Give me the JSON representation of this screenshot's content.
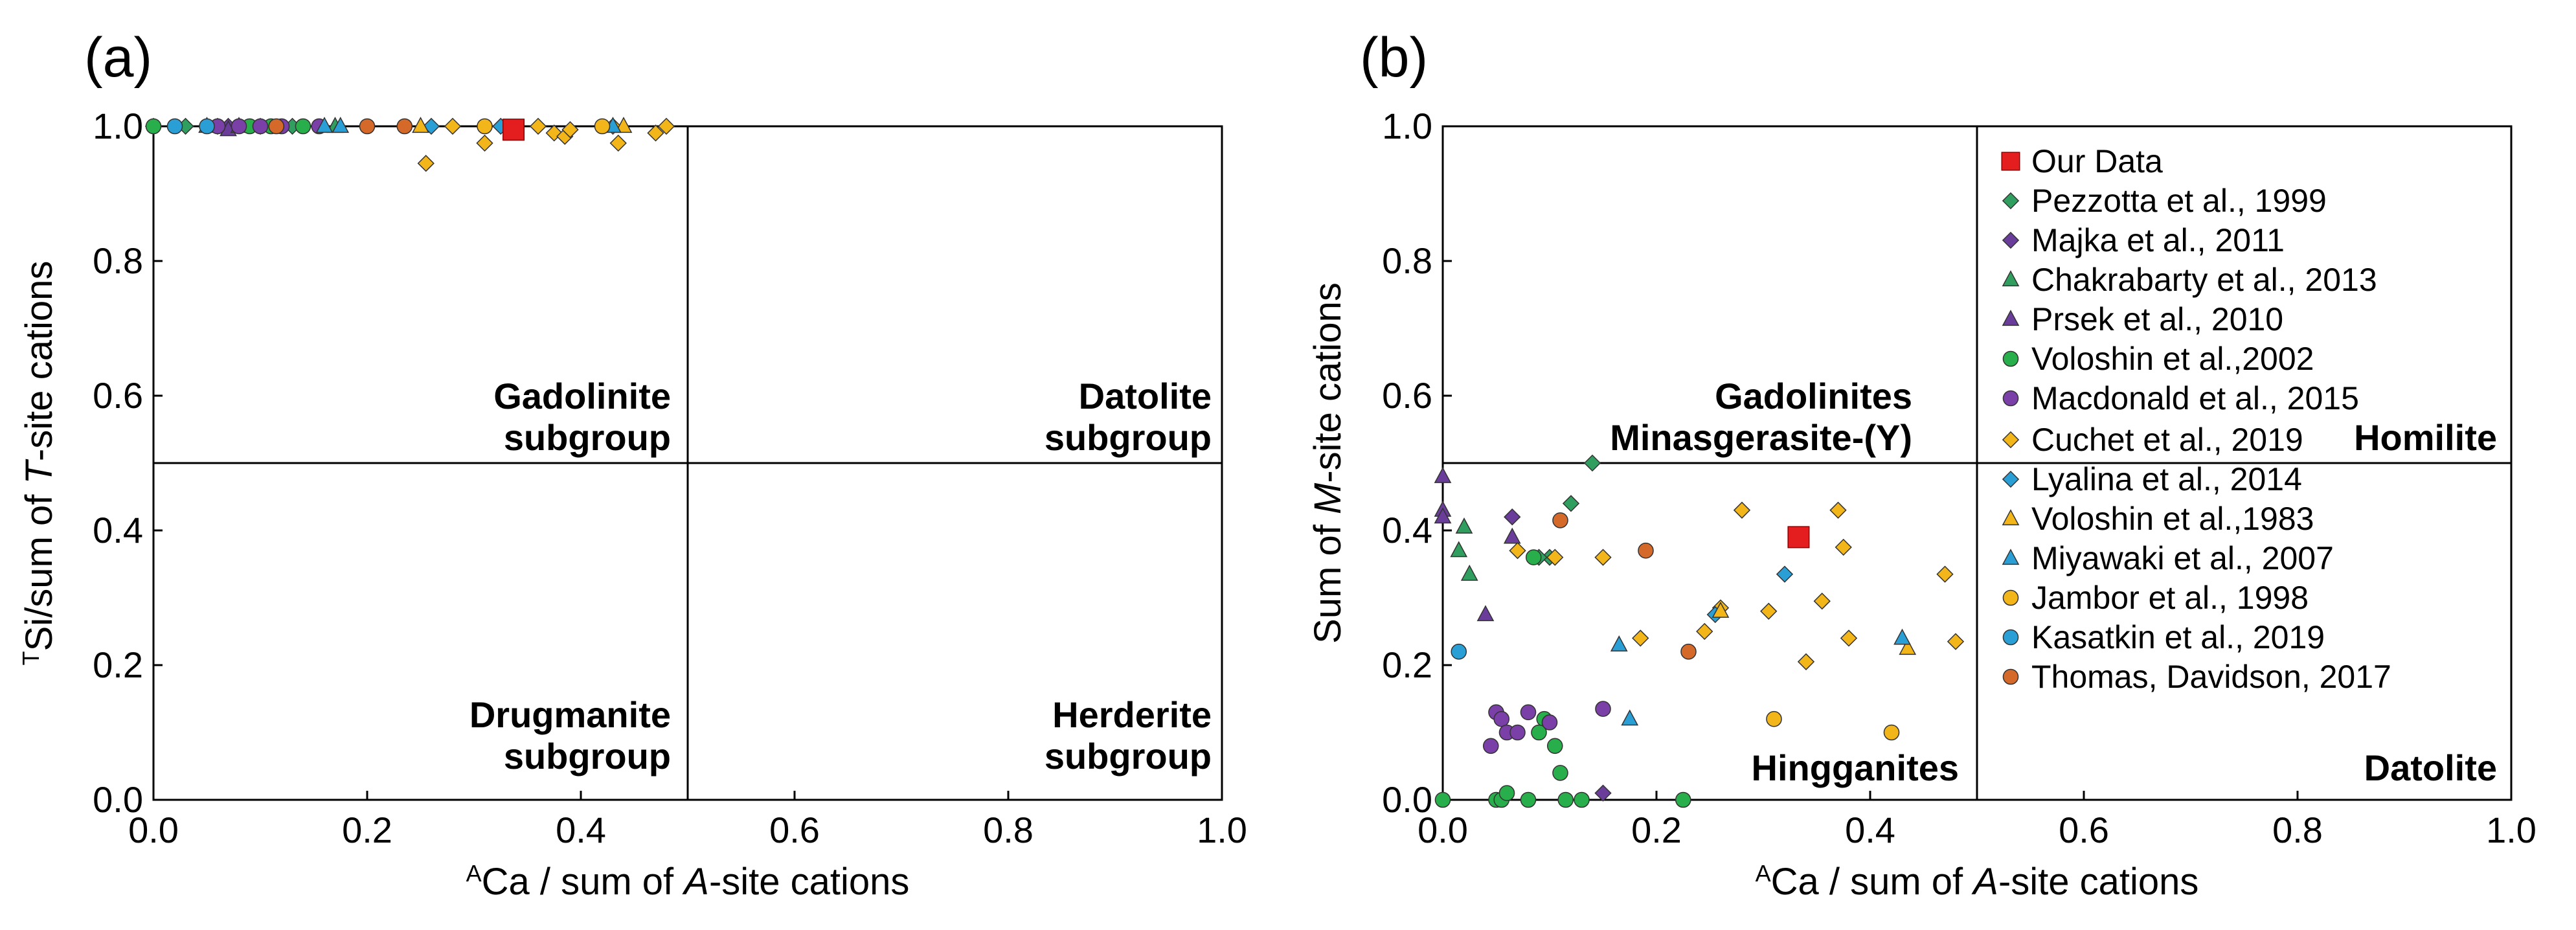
{
  "colors": {
    "our_data": "#e41e1e",
    "pezzotta": "#2f9e5e",
    "majka": "#6a3d9a",
    "chakrabarty": "#2f9e5e",
    "prsek": "#6a3d9a",
    "voloshin2002": "#28ae4a",
    "macdonald": "#7b3fa8",
    "cuchet": "#f2b51a",
    "lyalina": "#2a9fd6",
    "voloshin1983": "#f2b51a",
    "miyawaki": "#2a9fd6",
    "jambor": "#f2b51a",
    "kasatkin": "#2a9fd6",
    "thomas": "#d4692a"
  },
  "chart_data": [
    {
      "panel": "(a)",
      "type": "scatter",
      "xlabel": {
        "sup": "A",
        "pre": "Ca / sum of ",
        "ital": "A",
        "post": "-site cations"
      },
      "ylabel": {
        "sup": "T",
        "pre": "Si/sum of ",
        "ital": "T",
        "post": "-site cations"
      },
      "xlim": [
        0,
        1
      ],
      "ylim": [
        0,
        1
      ],
      "xticks": [
        "0.0",
        "0.2",
        "0.4",
        "0.6",
        "0.8",
        "1.0"
      ],
      "yticks": [
        "0.0",
        "0.2",
        "0.4",
        "0.6",
        "0.8",
        "1.0"
      ],
      "dividers": {
        "x": 0.5,
        "y": 0.5
      },
      "regions": [
        {
          "line1": "Gadolinite",
          "line2": "subgroup",
          "anchor": "top-left-quadrant"
        },
        {
          "line1": "Datolite",
          "line2": "subgroup",
          "anchor": "top-right-quadrant"
        },
        {
          "line1": "Drugmanite",
          "line2": "subgroup",
          "anchor": "bottom-left-quadrant"
        },
        {
          "line1": "Herderite",
          "line2": "subgroup",
          "anchor": "bottom-right-quadrant"
        }
      ],
      "series": [
        {
          "key": "our_data",
          "marker": "square",
          "points": [
            [
              0.337,
              0.995
            ]
          ]
        },
        {
          "key": "pezzotta",
          "marker": "diamond",
          "points": [
            [
              0.0,
              1.0
            ],
            [
              0.03,
              1.0
            ],
            [
              0.06,
              1.0
            ],
            [
              0.13,
              1.0
            ]
          ]
        },
        {
          "key": "majka",
          "marker": "diamond",
          "points": [
            [
              0.07,
              1.0
            ],
            [
              0.1,
              1.0
            ]
          ]
        },
        {
          "key": "chakrabarty",
          "marker": "triangle",
          "points": [
            [
              0.05,
              1.0
            ],
            [
              0.17,
              1.0
            ]
          ]
        },
        {
          "key": "prsek",
          "marker": "triangle",
          "points": [
            [
              0.07,
              0.995
            ],
            [
              0.08,
              1.0
            ]
          ]
        },
        {
          "key": "voloshin2002",
          "marker": "circle",
          "points": [
            [
              0.0,
              1.0
            ],
            [
              0.09,
              1.0
            ],
            [
              0.11,
              1.0
            ],
            [
              0.14,
              1.0
            ]
          ]
        },
        {
          "key": "macdonald",
          "marker": "circle",
          "points": [
            [
              0.06,
              1.0
            ],
            [
              0.08,
              1.0
            ],
            [
              0.1,
              1.0
            ],
            [
              0.12,
              1.0
            ],
            [
              0.155,
              1.0
            ]
          ]
        },
        {
          "key": "cuchet",
          "marker": "diamond",
          "points": [
            [
              0.255,
              0.945
            ],
            [
              0.28,
              1.0
            ],
            [
              0.31,
              0.975
            ],
            [
              0.36,
              1.0
            ],
            [
              0.375,
              0.99
            ],
            [
              0.385,
              0.985
            ],
            [
              0.39,
              0.995
            ],
            [
              0.43,
              1.0
            ],
            [
              0.435,
              0.975
            ],
            [
              0.47,
              0.99
            ],
            [
              0.48,
              1.0
            ]
          ]
        },
        {
          "key": "lyalina",
          "marker": "diamond",
          "points": [
            [
              0.26,
              1.0
            ],
            [
              0.325,
              1.0
            ]
          ]
        },
        {
          "key": "voloshin1983",
          "marker": "triangle",
          "points": [
            [
              0.25,
              1.0
            ],
            [
              0.44,
              1.0
            ]
          ]
        },
        {
          "key": "miyawaki",
          "marker": "triangle",
          "points": [
            [
              0.16,
              1.0
            ],
            [
              0.175,
              1.0
            ],
            [
              0.43,
              1.0
            ]
          ]
        },
        {
          "key": "jambor",
          "marker": "circle",
          "points": [
            [
              0.31,
              1.0
            ],
            [
              0.42,
              1.0
            ]
          ]
        },
        {
          "key": "kasatkin",
          "marker": "circle",
          "points": [
            [
              0.02,
              1.0
            ],
            [
              0.05,
              1.0
            ]
          ]
        },
        {
          "key": "thomas",
          "marker": "circle",
          "points": [
            [
              0.115,
              1.0
            ],
            [
              0.2,
              1.0
            ],
            [
              0.235,
              1.0
            ]
          ]
        }
      ]
    },
    {
      "panel": "(b)",
      "type": "scatter",
      "xlabel": {
        "sup": "A",
        "pre": "Ca / sum of ",
        "ital": "A",
        "post": "-site cations"
      },
      "ylabel": {
        "sup": "",
        "pre": "Sum of ",
        "ital": "M",
        "post": "-site cations"
      },
      "xlim": [
        0,
        1
      ],
      "ylim": [
        0,
        1
      ],
      "xticks": [
        "0.0",
        "0.2",
        "0.4",
        "0.6",
        "0.8",
        "1.0"
      ],
      "yticks": [
        "0.0",
        "0.2",
        "0.4",
        "0.6",
        "0.8",
        "1.0"
      ],
      "dividers": {
        "x": 0.5,
        "y": 0.5
      },
      "regions": [
        {
          "line1": "Gadolinites",
          "line2": "Minasgerasite-(Y)",
          "anchor": "top-left-quadrant"
        },
        {
          "line1": "Homilite",
          "line2": "",
          "anchor": "top-right-quadrant"
        },
        {
          "line1": "Hingganites",
          "line2": "",
          "anchor": "bottom-left-quadrant"
        },
        {
          "line1": "Datolite",
          "line2": "",
          "anchor": "bottom-right-quadrant"
        }
      ],
      "legend": [
        {
          "key": "our_data",
          "marker": "square",
          "label": "Our Data"
        },
        {
          "key": "pezzotta",
          "marker": "diamond",
          "label": "Pezzotta et al., 1999"
        },
        {
          "key": "majka",
          "marker": "diamond",
          "label": "Majka et al., 2011"
        },
        {
          "key": "chakrabarty",
          "marker": "triangle",
          "label": "Chakrabarty et al., 2013"
        },
        {
          "key": "prsek",
          "marker": "triangle",
          "label": "Prsek et al., 2010"
        },
        {
          "key": "voloshin2002",
          "marker": "circle",
          "label": "Voloshin et al.,2002"
        },
        {
          "key": "macdonald",
          "marker": "circle",
          "label": "Macdonald et al., 2015"
        },
        {
          "key": "cuchet",
          "marker": "diamond",
          "label": "Cuchet et al., 2019"
        },
        {
          "key": "lyalina",
          "marker": "diamond",
          "label": "Lyalina et al., 2014"
        },
        {
          "key": "voloshin1983",
          "marker": "triangle",
          "label": "Voloshin et al.,1983"
        },
        {
          "key": "miyawaki",
          "marker": "triangle",
          "label": "Miyawaki et al., 2007"
        },
        {
          "key": "jambor",
          "marker": "circle",
          "label": "Jambor et al., 1998"
        },
        {
          "key": "kasatkin",
          "marker": "circle",
          "label": "Kasatkin et al., 2019"
        },
        {
          "key": "thomas",
          "marker": "circle",
          "label": "Thomas, Davidson, 2017"
        }
      ],
      "series": [
        {
          "key": "our_data",
          "marker": "square",
          "points": [
            [
              0.333,
              0.39
            ]
          ]
        },
        {
          "key": "pezzotta",
          "marker": "diamond",
          "points": [
            [
              0.14,
              0.5
            ],
            [
              0.12,
              0.44
            ],
            [
              0.1,
              0.36
            ],
            [
              0.09,
              0.36
            ]
          ]
        },
        {
          "key": "majka",
          "marker": "diamond",
          "points": [
            [
              0.065,
              0.42
            ],
            [
              0.15,
              0.01
            ]
          ]
        },
        {
          "key": "chakrabarty",
          "marker": "triangle",
          "points": [
            [
              0.02,
              0.405
            ],
            [
              0.025,
              0.335
            ],
            [
              0.015,
              0.37
            ]
          ]
        },
        {
          "key": "prsek",
          "marker": "triangle",
          "points": [
            [
              0.0,
              0.48
            ],
            [
              0.0,
              0.43
            ],
            [
              0.0,
              0.42
            ],
            [
              0.04,
              0.275
            ],
            [
              0.065,
              0.39
            ]
          ]
        },
        {
          "key": "voloshin2002",
          "marker": "circle",
          "points": [
            [
              0.0,
              0.0
            ],
            [
              0.05,
              0.0
            ],
            [
              0.055,
              0.0
            ],
            [
              0.06,
              0.01
            ],
            [
              0.08,
              0.0
            ],
            [
              0.085,
              0.36
            ],
            [
              0.095,
              0.12
            ],
            [
              0.105,
              0.08
            ],
            [
              0.11,
              0.04
            ],
            [
              0.115,
              0.0
            ],
            [
              0.13,
              0.0
            ],
            [
              0.225,
              0.0
            ],
            [
              0.09,
              0.1
            ]
          ]
        },
        {
          "key": "macdonald",
          "marker": "circle",
          "points": [
            [
              0.045,
              0.08
            ],
            [
              0.05,
              0.13
            ],
            [
              0.055,
              0.12
            ],
            [
              0.06,
              0.1
            ],
            [
              0.07,
              0.1
            ],
            [
              0.08,
              0.13
            ],
            [
              0.1,
              0.115
            ],
            [
              0.15,
              0.135
            ]
          ]
        },
        {
          "key": "cuchet",
          "marker": "diamond",
          "points": [
            [
              0.07,
              0.37
            ],
            [
              0.105,
              0.36
            ],
            [
              0.15,
              0.36
            ],
            [
              0.185,
              0.24
            ],
            [
              0.245,
              0.25
            ],
            [
              0.26,
              0.285
            ],
            [
              0.28,
              0.43
            ],
            [
              0.305,
              0.28
            ],
            [
              0.34,
              0.205
            ],
            [
              0.355,
              0.295
            ],
            [
              0.38,
              0.24
            ],
            [
              0.37,
              0.43
            ],
            [
              0.375,
              0.375
            ],
            [
              0.47,
              0.335
            ],
            [
              0.48,
              0.235
            ]
          ]
        },
        {
          "key": "lyalina",
          "marker": "diamond",
          "points": [
            [
              0.255,
              0.275
            ],
            [
              0.32,
              0.335
            ]
          ]
        },
        {
          "key": "voloshin1983",
          "marker": "triangle",
          "points": [
            [
              0.26,
              0.28
            ],
            [
              0.435,
              0.225
            ]
          ]
        },
        {
          "key": "miyawaki",
          "marker": "triangle",
          "points": [
            [
              0.165,
              0.23
            ],
            [
              0.175,
              0.12
            ],
            [
              0.43,
              0.24
            ]
          ]
        },
        {
          "key": "jambor",
          "marker": "circle",
          "points": [
            [
              0.31,
              0.12
            ],
            [
              0.42,
              0.1
            ]
          ]
        },
        {
          "key": "kasatkin",
          "marker": "circle",
          "points": [
            [
              0.015,
              0.22
            ]
          ]
        },
        {
          "key": "thomas",
          "marker": "circle",
          "points": [
            [
              0.11,
              0.415
            ],
            [
              0.19,
              0.37
            ],
            [
              0.23,
              0.22
            ]
          ]
        }
      ]
    }
  ]
}
